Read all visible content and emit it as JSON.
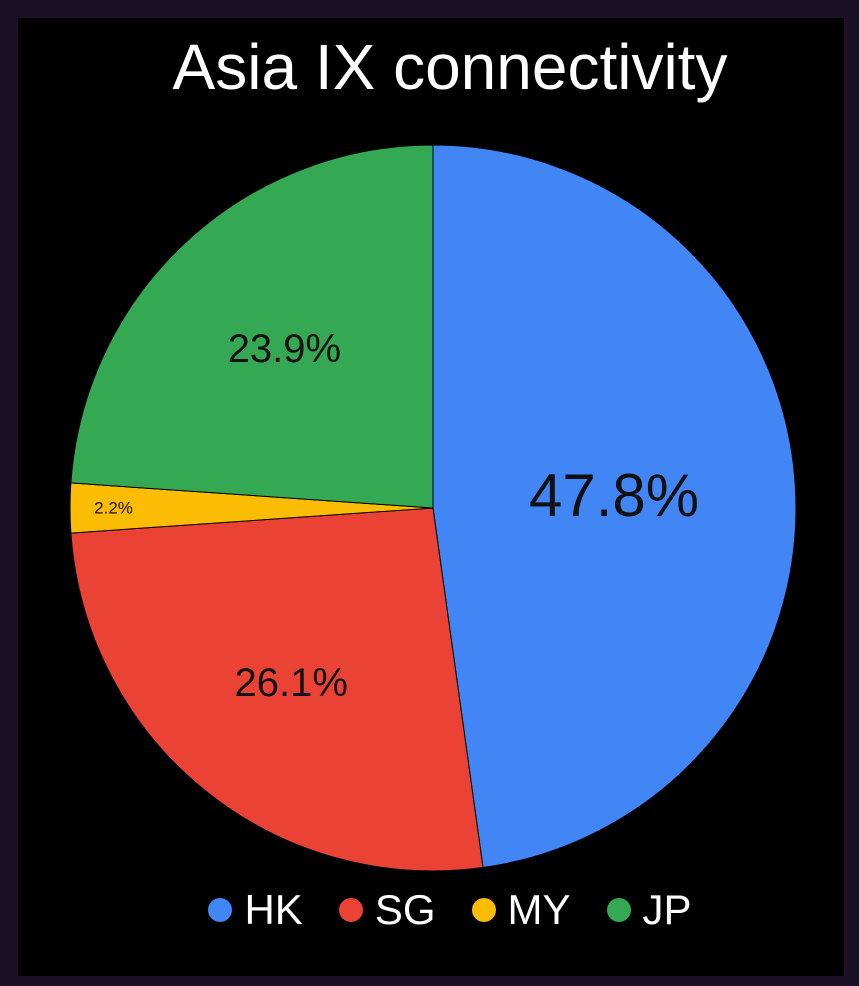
{
  "chart_data": {
    "type": "pie",
    "title": "Asia IX connectivity",
    "slices": [
      {
        "label": "HK",
        "value": 47.8,
        "display": "47.8%",
        "color": "#4285f4"
      },
      {
        "label": "SG",
        "value": 26.1,
        "display": "26.1%",
        "color": "#ea4335"
      },
      {
        "label": "MY",
        "value": 2.2,
        "display": "2.2%",
        "color": "#fbbc04"
      },
      {
        "label": "JP",
        "value": 23.9,
        "display": "23.9%",
        "color": "#34a853"
      }
    ],
    "legend_position": "bottom",
    "background": "#000000"
  }
}
